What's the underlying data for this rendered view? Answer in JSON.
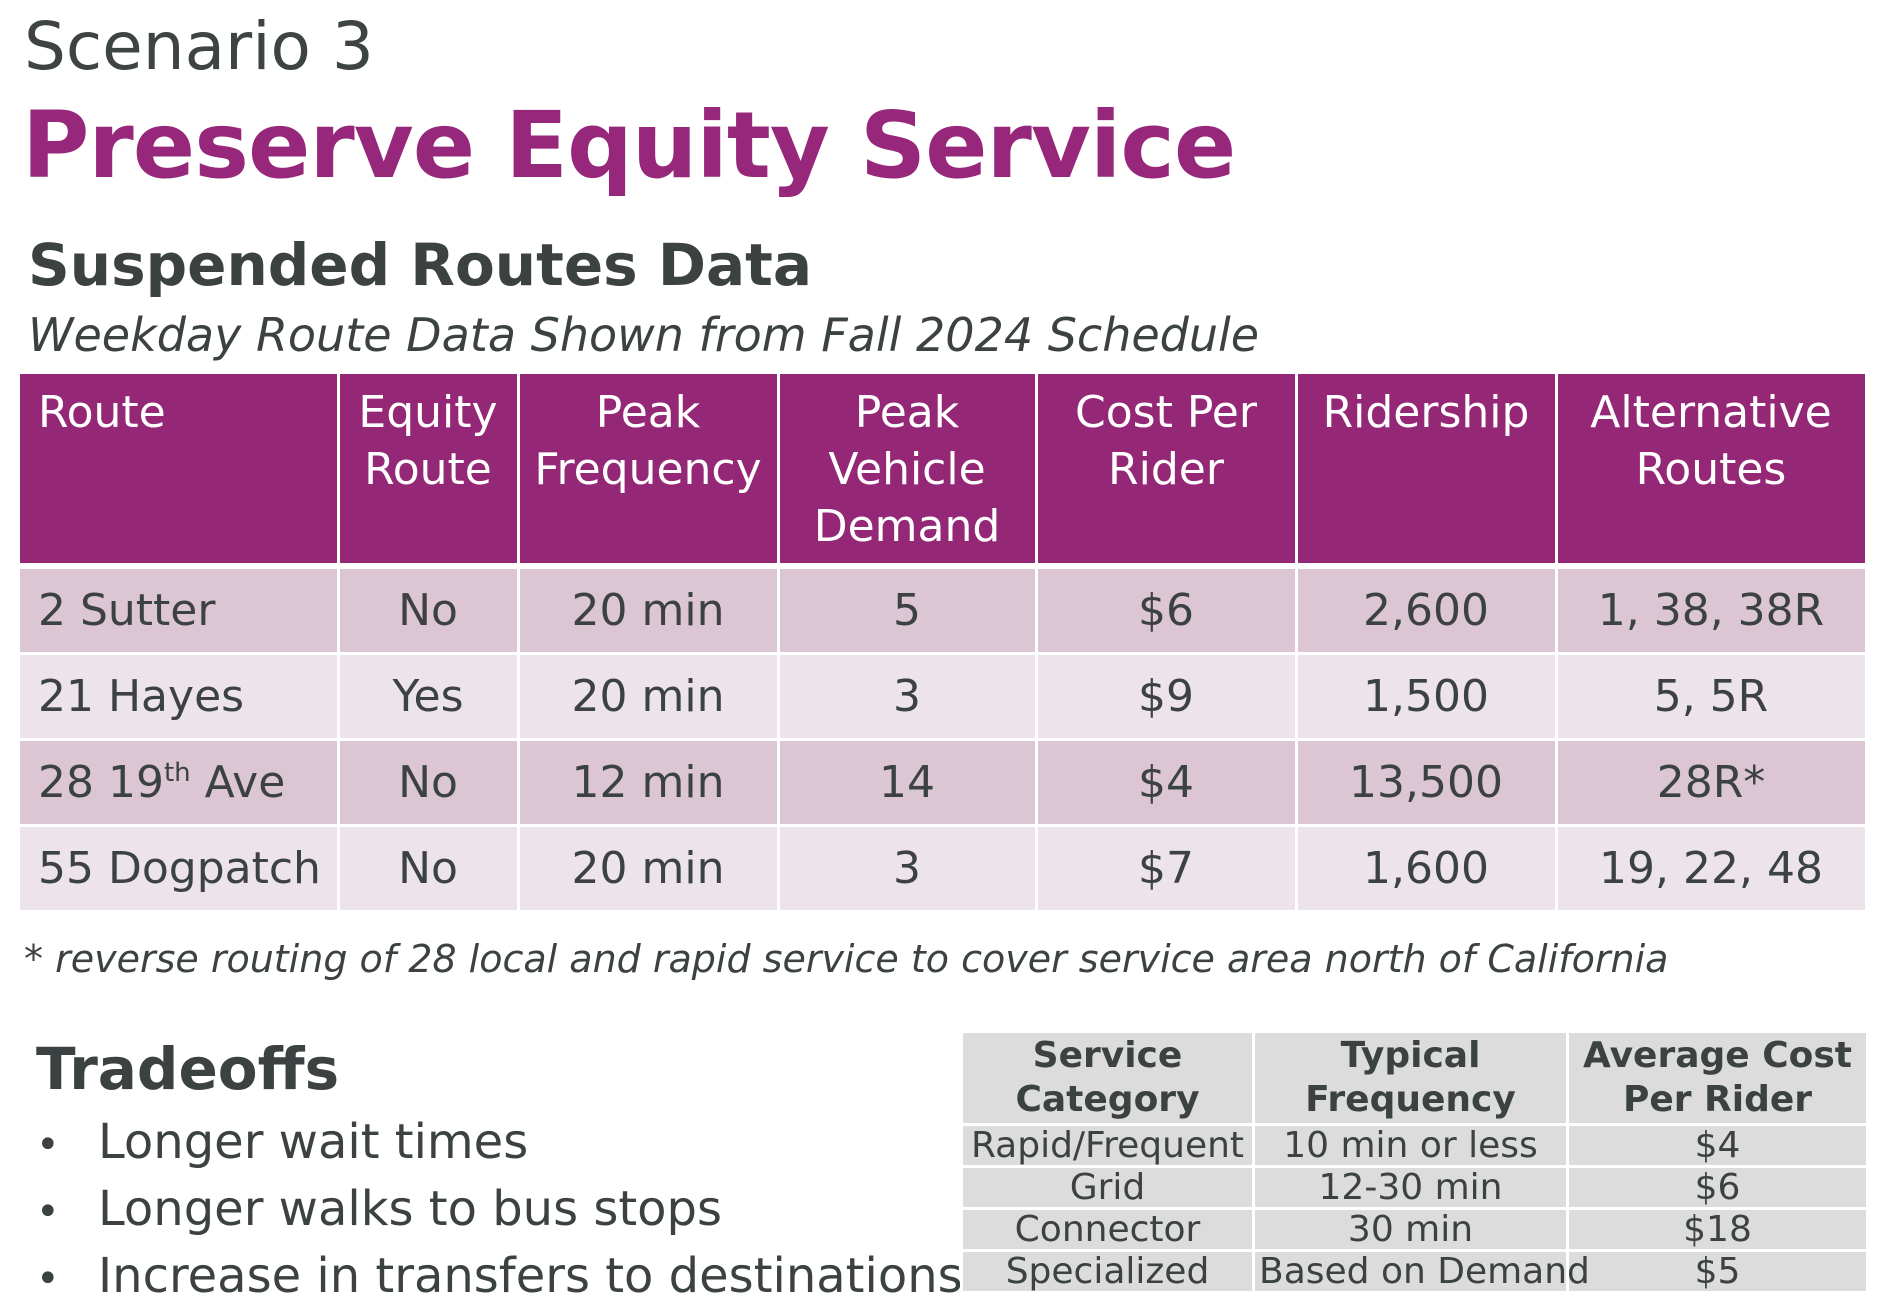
{
  "header": {
    "scenario": "Scenario 3",
    "title": "Preserve Equity Service"
  },
  "suspended_routes": {
    "title": "Suspended Routes Data",
    "subtitle": "Weekday Route Data Shown from Fall 2024 Schedule",
    "columns": [
      "Route",
      "Equity Route",
      "Peak Frequency",
      "Peak Vehicle Demand",
      "Cost Per Rider",
      "Ridership",
      "Alternative Routes"
    ],
    "rows": [
      {
        "route": "2 Sutter",
        "route_suffix": "",
        "route_rest": "",
        "equity_route": "No",
        "peak_frequency": "20 min",
        "peak_vehicle_demand": "5",
        "cost_per_rider": "$6",
        "ridership": "2,600",
        "alternative_routes": "1, 38, 38R"
      },
      {
        "route": "21 Hayes",
        "route_suffix": "",
        "route_rest": "",
        "equity_route": "Yes",
        "peak_frequency": "20 min",
        "peak_vehicle_demand": "3",
        "cost_per_rider": "$9",
        "ridership": "1,500",
        "alternative_routes": "5, 5R"
      },
      {
        "route": "28 19",
        "route_suffix": "th",
        "route_rest": " Ave",
        "equity_route": "No",
        "peak_frequency": "12 min",
        "peak_vehicle_demand": "14",
        "cost_per_rider": "$4",
        "ridership": "13,500",
        "alternative_routes": "28R*"
      },
      {
        "route": "55 Dogpatch",
        "route_suffix": "",
        "route_rest": "",
        "equity_route": "No",
        "peak_frequency": "20 min",
        "peak_vehicle_demand": "3",
        "cost_per_rider": "$7",
        "ridership": "1,600",
        "alternative_routes": "19, 22, 48"
      }
    ],
    "footnote": "* reverse routing of 28 local and rapid service to cover service area north of California"
  },
  "tradeoffs": {
    "title": "Tradeoffs",
    "bullet": "•",
    "items": [
      "Longer wait times",
      "Longer walks to bus stops",
      "Increase in transfers to destinations"
    ]
  },
  "service_categories": {
    "columns": [
      [
        "Service",
        "Category"
      ],
      [
        "Typical",
        "Frequency"
      ],
      [
        "Average Cost",
        "Per Rider"
      ]
    ],
    "rows": [
      {
        "category": "Rapid/Frequent",
        "frequency": "10 min or less",
        "avg_cost": "$4"
      },
      {
        "category": "Grid",
        "frequency": "12-30 min",
        "avg_cost": "$6"
      },
      {
        "category": "Connector",
        "frequency": "30 min",
        "avg_cost": "$18"
      },
      {
        "category": "Specialized",
        "frequency": "Based on Demand",
        "avg_cost": "$5"
      }
    ]
  },
  "colors": {
    "accent": "#952777",
    "text": "#3c4242",
    "row_odd": "#dcc6d4",
    "row_even": "#ede3ea",
    "service_table_bg": "#dcdcdc"
  }
}
